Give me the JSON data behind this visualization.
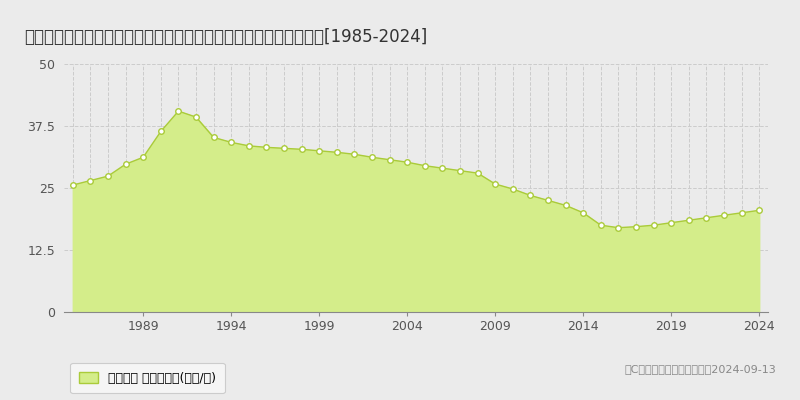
{
  "title": "広島県広島市安佐南区綠井８丁目８４８番３　地価公示　地価推移[1985-2024]",
  "years": [
    1985,
    1986,
    1987,
    1988,
    1989,
    1990,
    1991,
    1992,
    1993,
    1994,
    1995,
    1996,
    1997,
    1998,
    1999,
    2000,
    2001,
    2002,
    2003,
    2004,
    2005,
    2006,
    2007,
    2008,
    2009,
    2010,
    2011,
    2012,
    2013,
    2014,
    2015,
    2016,
    2017,
    2018,
    2019,
    2020,
    2021,
    2022,
    2023,
    2024
  ],
  "values": [
    25.6,
    26.5,
    27.4,
    29.8,
    31.2,
    36.4,
    40.5,
    39.3,
    35.2,
    34.2,
    33.5,
    33.2,
    33.0,
    32.8,
    32.5,
    32.2,
    31.8,
    31.2,
    30.7,
    30.2,
    29.5,
    29.0,
    28.5,
    28.0,
    25.8,
    24.8,
    23.5,
    22.5,
    21.5,
    20.0,
    17.5,
    17.0,
    17.2,
    17.5,
    18.0,
    18.5,
    19.0,
    19.5,
    20.0,
    20.5
  ],
  "fill_color": "#d4ed8a",
  "line_color": "#aacb3a",
  "marker_color": "#ffffff",
  "marker_edge_color": "#aacb3a",
  "background_color": "#ebebeb",
  "plot_bg_color": "#ebebeb",
  "grid_color": "#cccccc",
  "ylim": [
    0,
    50
  ],
  "yticks": [
    0,
    12.5,
    25,
    37.5,
    50
  ],
  "xtick_years": [
    1989,
    1994,
    1999,
    2004,
    2009,
    2014,
    2019,
    2024
  ],
  "legend_label": "地価公示 平均坊単価(万円/坊)",
  "copyright_text": "（C）土地価格ドットコム　2024-09-13",
  "title_fontsize": 12,
  "tick_fontsize": 9,
  "legend_fontsize": 9
}
